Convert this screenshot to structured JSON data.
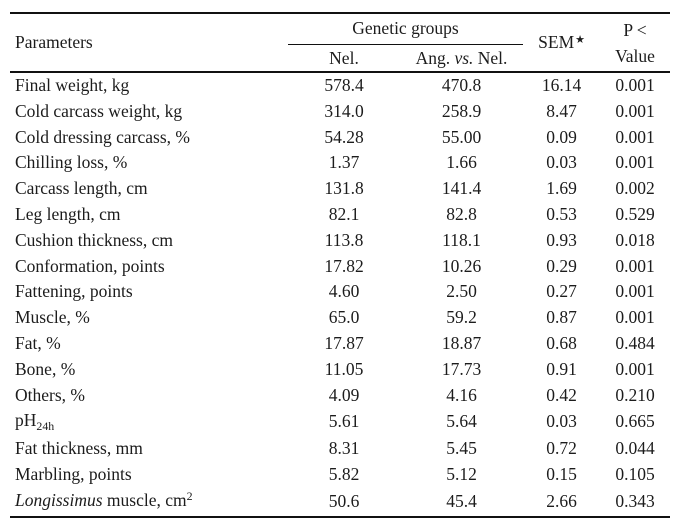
{
  "table": {
    "header": {
      "parameters": "Parameters",
      "genetic_groups": "Genetic groups",
      "nel": "Nel.",
      "ang_prefix": "Ang. ",
      "ang_vs": "vs.",
      "ang_suffix": " Nel.",
      "sem_label": "SEM",
      "sem_marker": "★",
      "p_line1": "P <",
      "p_line2": "Value"
    },
    "rows": [
      {
        "parameter": [
          {
            "t": "Final weight, kg"
          }
        ],
        "nel": "578.4",
        "ang": "470.8",
        "sem": "16.14",
        "p": "0.001"
      },
      {
        "parameter": [
          {
            "t": "Cold carcass weight, kg"
          }
        ],
        "nel": "314.0",
        "ang": "258.9",
        "sem": "8.47",
        "p": "0.001"
      },
      {
        "parameter": [
          {
            "t": "Cold dressing carcass, %"
          }
        ],
        "nel": "54.28",
        "ang": "55.00",
        "sem": "0.09",
        "p": "0.001"
      },
      {
        "parameter": [
          {
            "t": "Chilling loss, %"
          }
        ],
        "nel": "1.37",
        "ang": "1.66",
        "sem": "0.03",
        "p": "0.001"
      },
      {
        "parameter": [
          {
            "t": "Carcass length, cm"
          }
        ],
        "nel": "131.8",
        "ang": "141.4",
        "sem": "1.69",
        "p": "0.002"
      },
      {
        "parameter": [
          {
            "t": "Leg length, cm"
          }
        ],
        "nel": "82.1",
        "ang": "82.8",
        "sem": "0.53",
        "p": "0.529"
      },
      {
        "parameter": [
          {
            "t": "Cushion thickness, cm"
          }
        ],
        "nel": "113.8",
        "ang": "118.1",
        "sem": "0.93",
        "p": "0.018"
      },
      {
        "parameter": [
          {
            "t": "Conformation, points"
          }
        ],
        "nel": "17.82",
        "ang": "10.26",
        "sem": "0.29",
        "p": "0.001"
      },
      {
        "parameter": [
          {
            "t": "Fattening, points"
          }
        ],
        "nel": "4.60",
        "ang": "2.50",
        "sem": "0.27",
        "p": "0.001"
      },
      {
        "parameter": [
          {
            "t": "Muscle, %"
          }
        ],
        "nel": "65.0",
        "ang": "59.2",
        "sem": "0.87",
        "p": "0.001"
      },
      {
        "parameter": [
          {
            "t": "Fat, %"
          }
        ],
        "nel": "17.87",
        "ang": "18.87",
        "sem": "0.68",
        "p": "0.484"
      },
      {
        "parameter": [
          {
            "t": "Bone, %"
          }
        ],
        "nel": "11.05",
        "ang": "17.73",
        "sem": "0.91",
        "p": "0.001"
      },
      {
        "parameter": [
          {
            "t": "Others, %"
          }
        ],
        "nel": "4.09",
        "ang": "4.16",
        "sem": "0.42",
        "p": "0.210"
      },
      {
        "parameter": [
          {
            "t": "pH"
          },
          {
            "t": "24h",
            "style": "sub"
          }
        ],
        "nel": "5.61",
        "ang": "5.64",
        "sem": "0.03",
        "p": "0.665"
      },
      {
        "parameter": [
          {
            "t": "Fat thickness, mm"
          }
        ],
        "nel": "8.31",
        "ang": "5.45",
        "sem": "0.72",
        "p": "0.044"
      },
      {
        "parameter": [
          {
            "t": "Marbling, points"
          }
        ],
        "nel": "5.82",
        "ang": "5.12",
        "sem": "0.15",
        "p": "0.105"
      },
      {
        "parameter": [
          {
            "t": "Longissimus",
            "style": "i"
          },
          {
            "t": " muscle, cm"
          },
          {
            "t": "2",
            "style": "sup"
          }
        ],
        "nel": "50.6",
        "ang": "45.4",
        "sem": "2.66",
        "p": "0.343"
      }
    ]
  }
}
